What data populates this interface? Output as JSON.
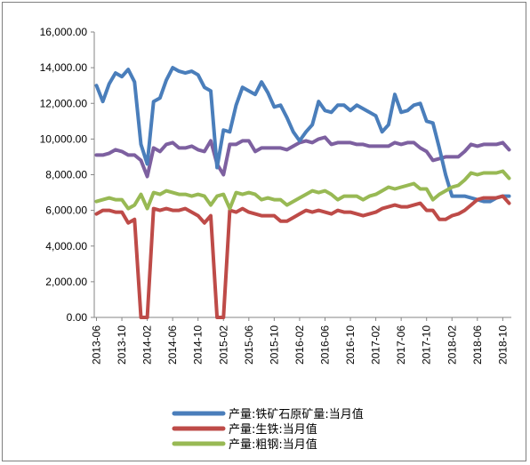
{
  "chart_data": {
    "type": "line",
    "title": "",
    "xlabel": "",
    "ylabel": "",
    "ylim": [
      0,
      16000
    ],
    "y_ticks": [
      "16,000.00",
      "14,000.00",
      "12,000.00",
      "10,000.00",
      "8,000.00",
      "6,000.00",
      "4,000.00",
      "2,000.00",
      "0.00"
    ],
    "y_tick_values": [
      16000,
      14000,
      12000,
      10000,
      8000,
      6000,
      4000,
      2000,
      0
    ],
    "x_tick_labels": [
      "2013-06",
      "2013-10",
      "2014-02",
      "2014-06",
      "2014-10",
      "2015-02",
      "2015-06",
      "2015-10",
      "2016-02",
      "2016-06",
      "2016-10",
      "2017-02",
      "2017-06",
      "2017-10",
      "2018-02",
      "2018-06",
      "2018-10"
    ],
    "x_tick_index": [
      0,
      4,
      8,
      12,
      16,
      20,
      24,
      28,
      32,
      36,
      40,
      44,
      48,
      52,
      56,
      60,
      64
    ],
    "x": [
      "2013-06",
      "2013-07",
      "2013-08",
      "2013-09",
      "2013-10",
      "2013-11",
      "2013-12",
      "2014-01",
      "2014-02",
      "2014-03",
      "2014-04",
      "2014-05",
      "2014-06",
      "2014-07",
      "2014-08",
      "2014-09",
      "2014-10",
      "2014-11",
      "2014-12",
      "2015-01",
      "2015-02",
      "2015-03",
      "2015-04",
      "2015-05",
      "2015-06",
      "2015-07",
      "2015-08",
      "2015-09",
      "2015-10",
      "2015-11",
      "2015-12",
      "2016-01",
      "2016-02",
      "2016-03",
      "2016-04",
      "2016-05",
      "2016-06",
      "2016-07",
      "2016-08",
      "2016-09",
      "2016-10",
      "2016-11",
      "2016-12",
      "2017-01",
      "2017-02",
      "2017-03",
      "2017-04",
      "2017-05",
      "2017-06",
      "2017-07",
      "2017-08",
      "2017-09",
      "2017-10",
      "2017-11",
      "2017-12",
      "2018-01",
      "2018-02",
      "2018-03",
      "2018-04",
      "2018-05",
      "2018-06",
      "2018-07",
      "2018-08",
      "2018-09",
      "2018-10",
      "2018-11"
    ],
    "legend_position": "bottom",
    "grid": false,
    "series": [
      {
        "name": "产量:铁矿石原矿量:当月值",
        "color": "#4a7ebb",
        "values": [
          13000,
          12100,
          13100,
          13700,
          13500,
          13900,
          13200,
          9700,
          8600,
          12100,
          12300,
          13300,
          14000,
          13800,
          13700,
          13800,
          13600,
          12900,
          12700,
          8400,
          10500,
          10400,
          11900,
          12900,
          12700,
          12500,
          13200,
          12600,
          11800,
          11900,
          11200,
          10400,
          9900,
          10400,
          10800,
          12100,
          11600,
          11500,
          11900,
          11900,
          11600,
          11900,
          11700,
          11500,
          11300,
          10400,
          10800,
          12500,
          11500,
          11600,
          11900,
          12000,
          11000,
          10900,
          9500,
          8000,
          6800,
          6800,
          6800,
          6700,
          6600,
          6500,
          6500,
          6700,
          6800,
          6800
        ]
      },
      {
        "name": "产量:生铁:当月值",
        "color": "#be4b48",
        "values": [
          5800,
          6000,
          6000,
          5900,
          5900,
          5300,
          5500,
          0,
          0,
          6100,
          6000,
          6100,
          6000,
          6000,
          6100,
          5900,
          5700,
          5300,
          5700,
          0,
          0,
          6000,
          5900,
          6100,
          5900,
          5800,
          5700,
          5700,
          5700,
          5400,
          5400,
          5600,
          5800,
          6000,
          5900,
          6000,
          5900,
          5800,
          6000,
          5900,
          5900,
          5800,
          5700,
          5800,
          5900,
          6100,
          6200,
          6300,
          6200,
          6200,
          6300,
          6400,
          6000,
          6000,
          5500,
          5500,
          5700,
          5800,
          6000,
          6300,
          6600,
          6700,
          6700,
          6700,
          6800,
          6400
        ]
      },
      {
        "name": "产量:粗钢:当月值",
        "color": "#98b954",
        "values": [
          6500,
          6600,
          6700,
          6600,
          6600,
          6100,
          6300,
          6900,
          6100,
          7000,
          6900,
          7100,
          7000,
          6900,
          6900,
          6800,
          6900,
          6800,
          6300,
          6800,
          6900,
          6100,
          7000,
          6900,
          7000,
          6900,
          6600,
          6700,
          6600,
          6600,
          6300,
          6500,
          6700,
          6900,
          7100,
          7000,
          7100,
          6900,
          6600,
          6800,
          6800,
          6800,
          6600,
          6800,
          6900,
          7100,
          7300,
          7200,
          7300,
          7400,
          7500,
          7200,
          7200,
          6600,
          6900,
          7100,
          7300,
          7400,
          7700,
          8100,
          8000,
          8100,
          8100,
          8100,
          8200,
          7800
        ]
      },
      {
        "name": "",
        "color": "#7d60a0",
        "values": [
          9100,
          9100,
          9200,
          9400,
          9300,
          9100,
          9100,
          8800,
          7900,
          9500,
          9300,
          9700,
          9800,
          9500,
          9500,
          9600,
          9400,
          9300,
          9900,
          8600,
          8000,
          9700,
          9700,
          9900,
          9900,
          9300,
          9500,
          9500,
          9500,
          9500,
          9400,
          9600,
          9800,
          9900,
          9800,
          10000,
          10100,
          9700,
          9800,
          9800,
          9800,
          9700,
          9700,
          9600,
          9600,
          9600,
          9600,
          9800,
          9700,
          9800,
          9800,
          9500,
          9300,
          8800,
          8900,
          9000,
          9000,
          9000,
          9300,
          9700,
          9600,
          9700,
          9700,
          9700,
          9800,
          9400
        ]
      }
    ]
  }
}
